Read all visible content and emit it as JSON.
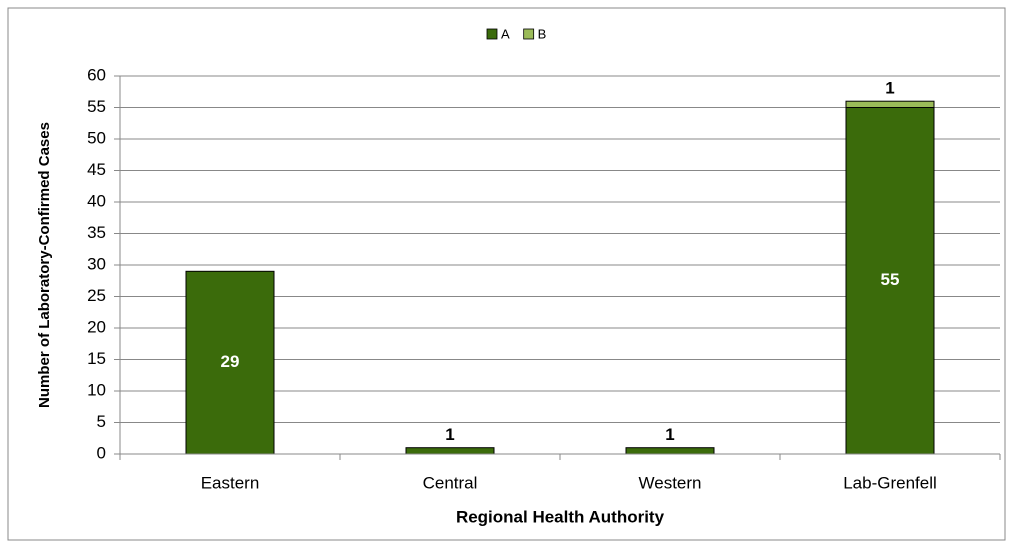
{
  "chart_data": {
    "type": "stacked-bar",
    "x_label": "Regional Health Authority",
    "y_label": "Number of Laboratory-Confirmed Cases",
    "categories": [
      "Eastern",
      "Central",
      "Western",
      "Lab-Grenfell"
    ],
    "series": [
      {
        "name": "A",
        "color": "#3b6b0b",
        "values": [
          29,
          1,
          1,
          55
        ]
      },
      {
        "name": "B",
        "color": "#9bbb59",
        "values": [
          null,
          null,
          null,
          1
        ]
      }
    ],
    "ylim": [
      0,
      60
    ],
    "yticks": [
      0,
      5,
      10,
      15,
      20,
      25,
      30,
      35,
      40,
      45,
      50,
      55,
      60
    ],
    "grid": true,
    "legend": "top"
  }
}
